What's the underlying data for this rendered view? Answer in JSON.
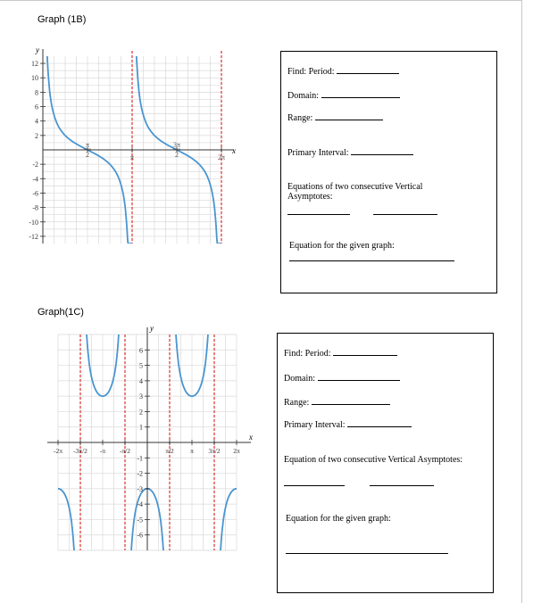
{
  "graph_1b": {
    "heading": "Graph (1B)",
    "y_label": "y",
    "x_label": "x",
    "y_ticks": [
      "12",
      "10",
      "8",
      "6",
      "4",
      "2",
      "-2",
      "-4",
      "-6",
      "-8",
      "-10",
      "-12"
    ],
    "x_ticks": [
      {
        "num": "π",
        "den": "2"
      },
      {
        "num": "π",
        "den": ""
      },
      {
        "num": "3π",
        "den": "2"
      },
      {
        "num": "2π",
        "den": ""
      }
    ],
    "questions": {
      "period": "Find: Period:",
      "domain": "Domain:",
      "range": "Range:",
      "primary_interval": "Primary Interval:",
      "asymptotes": "Equations of two consecutive Vertical Asymptotes:",
      "equation": "Equation for the given graph:"
    }
  },
  "graph_1c": {
    "heading": "Graph(1C)",
    "y_label": "y",
    "x_label": "x",
    "y_ticks": [
      "6",
      "5",
      "4",
      "3",
      "2",
      "1",
      "-1",
      "-2",
      "-3",
      "-4",
      "-5",
      "-6"
    ],
    "x_ticks": [
      "-2π",
      "-3π/2",
      "-π",
      "-π/2",
      "π/2",
      "π",
      "3π/2",
      "2π"
    ],
    "questions": {
      "period": "Find: Period:",
      "domain": "Domain:",
      "range": "Range:",
      "primary_interval": "Primary Interval:",
      "asymptotes": "Equation of two consecutive Vertical Asymptotes:",
      "equation": "Equation for the given graph:"
    }
  },
  "colors": {
    "curve": "#4a95d0",
    "asymptote": "#e03030",
    "grid": "#d9d9d9",
    "axis": "#333333"
  }
}
